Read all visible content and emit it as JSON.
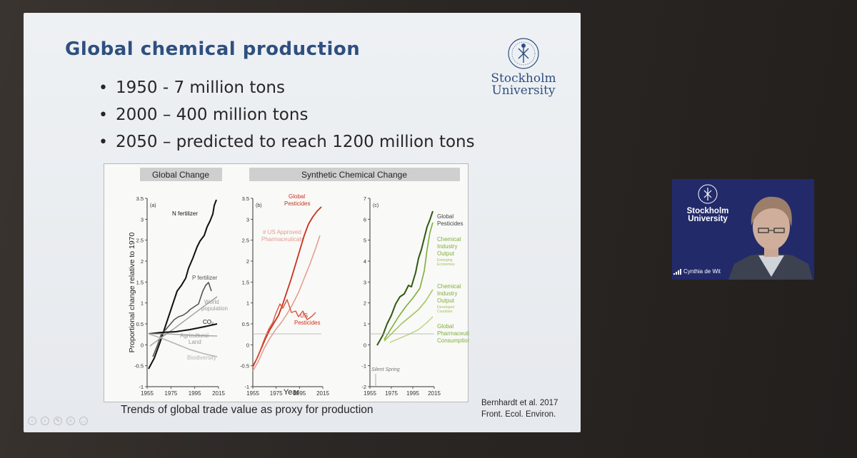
{
  "slide": {
    "title": "Global chemical production",
    "bullets": [
      "1950 - 7 million tons",
      "2000 – 400 million tons",
      "2050 – predicted to reach 1200 million tons"
    ],
    "logo": {
      "line1": "Stockholm",
      "line2": "University",
      "icon": "university-seal-icon"
    },
    "caption": "Trends of global trade value as proxy for production",
    "citation": [
      "Bernhardt et al. 2017",
      "Front. Ecol. Environ."
    ]
  },
  "figure": {
    "panel_headers": [
      "Global Change",
      "Synthetic Chemical Change"
    ],
    "ylabel": "Proportional change relative to 1970",
    "xlabel": "Year",
    "panels": [
      {
        "id": "(a)",
        "y_ticks": [
          "3.5",
          "3",
          "2.5",
          "2",
          "1.5",
          "1",
          "0.5",
          "0",
          "-0.5",
          "-1"
        ],
        "x_ticks": [
          "1955",
          "1975",
          "1995",
          "2015"
        ],
        "series_labels": [
          "N fertilizer",
          "P fertilizer",
          "World",
          "population",
          "CO₂",
          "Agricultural",
          "Land",
          "Biodiversity"
        ]
      },
      {
        "id": "(b)",
        "y_ticks": [
          "3.5",
          "3",
          "2.5",
          "2",
          "1.5",
          "1",
          "0.5",
          "0",
          "-0.5",
          "-1"
        ],
        "x_ticks": [
          "1955",
          "1975",
          "1995",
          "2015"
        ],
        "series_labels": [
          "Global",
          "Pesticides",
          "# US Approved",
          "Pharmaceuticals",
          "US",
          "Pesticides"
        ]
      },
      {
        "id": "(c)",
        "y_ticks": [
          "7",
          "6",
          "5",
          "4",
          "3",
          "2",
          "1",
          "0",
          "-1",
          "-2"
        ],
        "x_ticks": [
          "1955",
          "1975",
          "1995",
          "2015"
        ],
        "series_labels": [
          "Global",
          "Pesticides",
          "Chemical",
          "Industry",
          "Output",
          "Emerging",
          "Economies",
          "Chemical",
          "Industry",
          "Output",
          "Developed",
          "Countries",
          "Global",
          "Pharmaceutical",
          "Consumption"
        ],
        "annotation": "Silent Spring"
      }
    ],
    "colors": {
      "global": "#111111",
      "gray": "#9a9a9a",
      "red": "#c8321e",
      "pink": "#e39a8f",
      "green_dark": "#2f5a12",
      "green": "#7fae3a",
      "green_light": "#b9d27f"
    }
  },
  "participant": {
    "name": "Cynthia de Wit",
    "logo": {
      "line1": "Stockholm",
      "line2": "University"
    },
    "tile_color": "#222a6a"
  },
  "toolbar": {
    "icons": [
      "prev-icon",
      "next-icon",
      "pen-icon",
      "zoom-icon",
      "more-icon"
    ]
  }
}
